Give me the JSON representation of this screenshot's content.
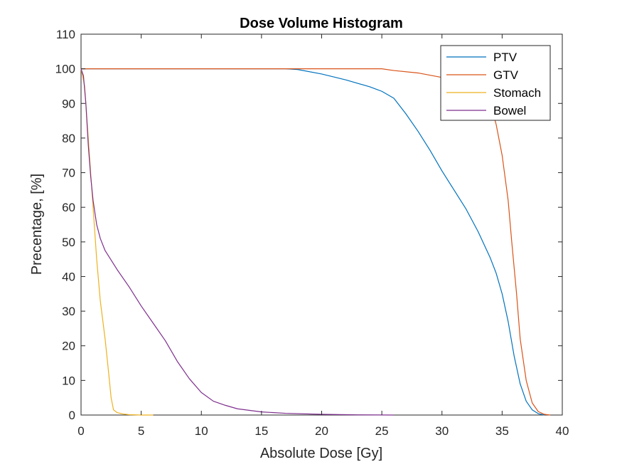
{
  "chart_data": {
    "type": "line",
    "title": "Dose Volume Histogram",
    "xlabel": "Absolute Dose [Gy]",
    "ylabel": "Precentage, [%]",
    "xlim": [
      0,
      40
    ],
    "ylim": [
      0,
      110
    ],
    "xticks": [
      0,
      5,
      10,
      15,
      20,
      25,
      30,
      35,
      40
    ],
    "yticks": [
      0,
      10,
      20,
      30,
      40,
      50,
      60,
      70,
      80,
      90,
      100,
      110
    ],
    "grid": false,
    "legend_position": "top-right",
    "series": [
      {
        "name": "PTV",
        "color": "#0072BD",
        "points": [
          [
            0,
            100
          ],
          [
            17,
            100
          ],
          [
            18,
            99.8
          ],
          [
            20,
            98.5
          ],
          [
            22,
            96.8
          ],
          [
            24,
            94.8
          ],
          [
            25,
            93.5
          ],
          [
            26,
            91.5
          ],
          [
            27,
            87
          ],
          [
            28,
            82
          ],
          [
            29,
            76.5
          ],
          [
            30,
            70.5
          ],
          [
            31,
            65
          ],
          [
            32,
            59.5
          ],
          [
            33,
            53
          ],
          [
            34,
            45.5
          ],
          [
            34.5,
            41
          ],
          [
            35,
            35
          ],
          [
            35.5,
            27
          ],
          [
            36,
            17
          ],
          [
            36.5,
            9
          ],
          [
            37,
            4
          ],
          [
            37.5,
            1.5
          ],
          [
            38,
            0.4
          ],
          [
            38.5,
            0
          ]
        ]
      },
      {
        "name": "GTV",
        "color": "#D95319",
        "points": [
          [
            0,
            100
          ],
          [
            25,
            100
          ],
          [
            26,
            99.5
          ],
          [
            28,
            98.8
          ],
          [
            30,
            97.5
          ],
          [
            32,
            96
          ],
          [
            33,
            94.5
          ],
          [
            34,
            90
          ],
          [
            34.5,
            84
          ],
          [
            35,
            75
          ],
          [
            35.5,
            62
          ],
          [
            35.8,
            50
          ],
          [
            36.2,
            35
          ],
          [
            36.5,
            22
          ],
          [
            37,
            10
          ],
          [
            37.5,
            3.5
          ],
          [
            38,
            1
          ],
          [
            38.5,
            0.2
          ],
          [
            39,
            0
          ]
        ]
      },
      {
        "name": "Stomach",
        "color": "#EDB120",
        "points": [
          [
            0,
            100
          ],
          [
            0.3,
            95
          ],
          [
            0.5,
            85
          ],
          [
            0.8,
            70
          ],
          [
            1,
            60
          ],
          [
            1.3,
            45
          ],
          [
            1.6,
            33
          ],
          [
            2,
            22
          ],
          [
            2.3,
            12
          ],
          [
            2.5,
            5
          ],
          [
            2.7,
            1.5
          ],
          [
            3,
            0.7
          ],
          [
            3.5,
            0.3
          ],
          [
            4,
            0.1
          ],
          [
            5,
            0
          ],
          [
            6,
            0
          ]
        ]
      },
      {
        "name": "Bowel",
        "color": "#7E2F8E",
        "points": [
          [
            0,
            100
          ],
          [
            0.2,
            98
          ],
          [
            0.4,
            90
          ],
          [
            0.6,
            78
          ],
          [
            0.8,
            69
          ],
          [
            1,
            62
          ],
          [
            1.3,
            55
          ],
          [
            1.6,
            51
          ],
          [
            2,
            47.5
          ],
          [
            3,
            42
          ],
          [
            4,
            37
          ],
          [
            5,
            31.5
          ],
          [
            6,
            26.5
          ],
          [
            7,
            21.5
          ],
          [
            8,
            15.5
          ],
          [
            9,
            10.5
          ],
          [
            10,
            6.5
          ],
          [
            11,
            4
          ],
          [
            12,
            2.8
          ],
          [
            13,
            1.8
          ],
          [
            15,
            0.9
          ],
          [
            17,
            0.5
          ],
          [
            20,
            0.2
          ],
          [
            23,
            0.05
          ],
          [
            26,
            0
          ]
        ]
      }
    ]
  }
}
